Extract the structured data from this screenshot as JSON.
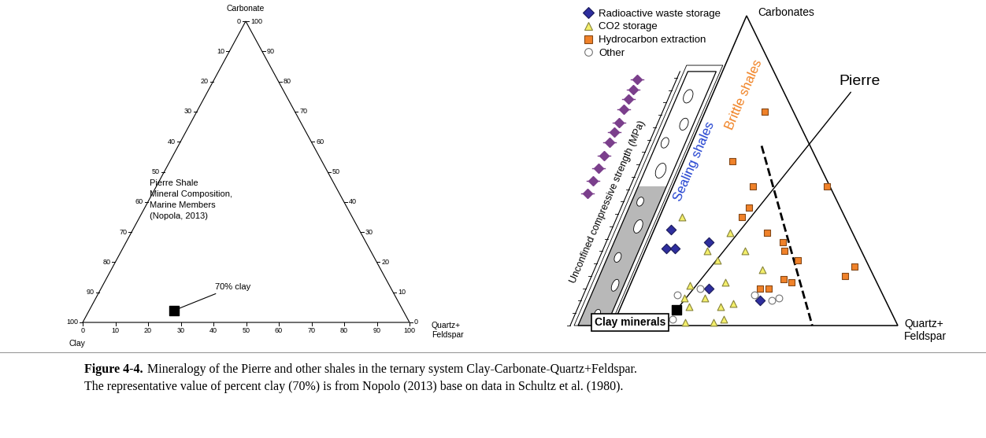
{
  "chart_data": [
    {
      "type": "ternary",
      "components": [
        {
          "name": "Clay",
          "lim": [
            0,
            100
          ],
          "ticks": [
            0,
            10,
            20,
            30,
            40,
            50,
            60,
            70,
            80,
            90,
            100
          ]
        },
        {
          "name": "Carbonate",
          "lim": [
            0,
            100
          ],
          "ticks": [
            0,
            10,
            20,
            30,
            40,
            50,
            60,
            70,
            80,
            90,
            100
          ]
        },
        {
          "name": "Quartz+\nFeldspar",
          "lim": [
            0,
            100
          ],
          "ticks": [
            0,
            10,
            20,
            30,
            40,
            50,
            60,
            70,
            80,
            90,
            100
          ]
        }
      ],
      "note": "Pierre Shale\nMineral Composition,\nMarine Members\n(Nopola, 2013)",
      "points": {
        "clay": [
          70
        ],
        "carbonate": [
          4
        ],
        "quartz_feldspar": [
          26
        ],
        "color": "#000000",
        "marker": "square",
        "annotation": "70% clay"
      }
    },
    {
      "type": "ternary",
      "tick_labels": false,
      "legend": "upper left",
      "components": [
        {
          "name": "Clay minerals"
        },
        {
          "name": "Carbonates"
        },
        {
          "name": "Quartz+\nFeldspar"
        }
      ],
      "series": [
        {
          "name": "Radioactive waste storage",
          "color": "#2e2e9e",
          "marker": "diamond",
          "clay": [
            63,
            68,
            65,
            52,
            60,
            44
          ],
          "carbonate": [
            31,
            25,
            25,
            27,
            12,
            8
          ],
          "quartz_feldspar": [
            6,
            7,
            10,
            21,
            28,
            48
          ]
        },
        {
          "name": "CO2 storage",
          "color": "#f4ef6a",
          "marker": "triangle",
          "clay": [
            57,
            43,
            54,
            52,
            41,
            38,
            66,
            53,
            70,
            70,
            63,
            59,
            54,
            60,
            74,
            64
          ],
          "carbonate": [
            35,
            30,
            24,
            21,
            24,
            18,
            13,
            14,
            9,
            6,
            9,
            6,
            7,
            2,
            1,
            1
          ],
          "quartz_feldspar": [
            8,
            27,
            22,
            27,
            35,
            44,
            21,
            33,
            21,
            24,
            28,
            35,
            39,
            38,
            25,
            35
          ]
        },
        {
          "name": "Hydrocarbon extraction",
          "color": "#f0822a",
          "marker": "square",
          "clay": [
            10,
            30,
            27,
            1,
            36,
            32,
            30,
            26,
            27,
            24,
            32,
            42,
            39,
            30,
            10,
            5
          ],
          "carbonate": [
            69,
            53,
            45,
            45,
            35,
            38,
            30,
            27,
            24,
            21,
            15,
            12,
            12,
            14,
            16,
            19
          ],
          "quartz_feldspar": [
            21,
            17,
            28,
            54,
            29,
            30,
            40,
            47,
            49,
            55,
            53,
            46,
            49,
            56,
            74,
            76
          ]
        },
        {
          "name": "Other",
          "color": "#ffffff",
          "marker": "circle",
          "clay": [
            78,
            63,
            72,
            45,
            40,
            37
          ],
          "carbonate": [
            2,
            12,
            10,
            10,
            8,
            9
          ],
          "quartz_feldspar": [
            20,
            25,
            18,
            45,
            52,
            54
          ]
        }
      ],
      "pierre": {
        "label": "Pierre",
        "clay": [
          75
        ],
        "carbonate": [
          5
        ],
        "quartz_feldspar": [
          20
        ],
        "color": "#000000",
        "marker": "square"
      },
      "boundary": {
        "clay": [
          17,
          30
        ],
        "carbonate": [
          58,
          0
        ],
        "quartz_feldspar": [
          25,
          70
        ],
        "color": "#000000",
        "line_style": "dashed"
      },
      "fields": [
        {
          "label": "Sealing shales",
          "color": "#2040d0"
        },
        {
          "label": "Brittle shales",
          "color": "#f08020"
        }
      ],
      "strength_axis": {
        "label": "Unconfined compressive strength (MPa)",
        "lim": [
          0,
          100
        ],
        "markers": [
          97,
          93,
          89,
          85,
          80,
          76,
          72,
          67,
          62,
          57,
          52
        ],
        "color": "#7b3f8c"
      }
    }
  ],
  "caption": {
    "label": "Figure 4-4.",
    "lines": [
      "Mineralogy of the Pierre and other shales in the ternary system Clay-Carbonate-Quartz+Feldspar.",
      "The representative value of percent clay (70%) is from Nopolo (2013) base on data in Schultz et al. (1980)."
    ]
  }
}
